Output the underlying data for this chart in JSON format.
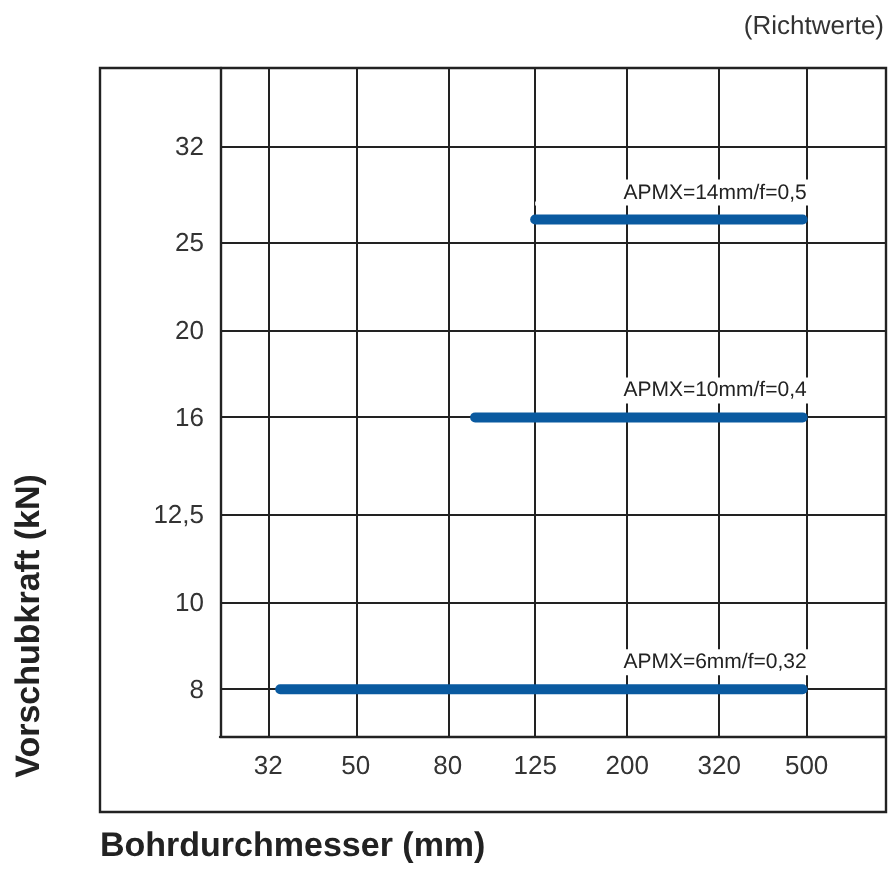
{
  "chart_data": {
    "type": "line",
    "subtitle": "(Richtwerte)",
    "xlabel": "Bohrdurchmesser (mm)",
    "ylabel": "Vorschubkraft (kN)",
    "log": "xy",
    "grid": true,
    "legend": false,
    "marker": "none",
    "line_style": "solid",
    "xlim": [
      25,
      750
    ],
    "xticks": [
      32,
      50,
      80,
      125,
      200,
      320,
      500
    ],
    "ylim": [
      7.1,
      39
    ],
    "yticks": [
      8,
      10,
      {
        "value": 12.5,
        "label": "12,5"
      },
      16,
      20,
      25,
      32
    ],
    "series": [
      {
        "name": "APMX=6mm/f=0,32",
        "color": "#0a5aa0",
        "x": [
          34,
          490
        ],
        "values": [
          8,
          8
        ]
      },
      {
        "name": "APMX=10mm/f=0,4",
        "color": "#0a5aa0",
        "x": [
          92,
          490
        ],
        "values": [
          16,
          16
        ]
      },
      {
        "name": "APMX=14mm/f=0,5",
        "color": "#0a5aa0",
        "x": [
          125,
          490
        ],
        "values": [
          26.5,
          26.5
        ]
      }
    ]
  }
}
